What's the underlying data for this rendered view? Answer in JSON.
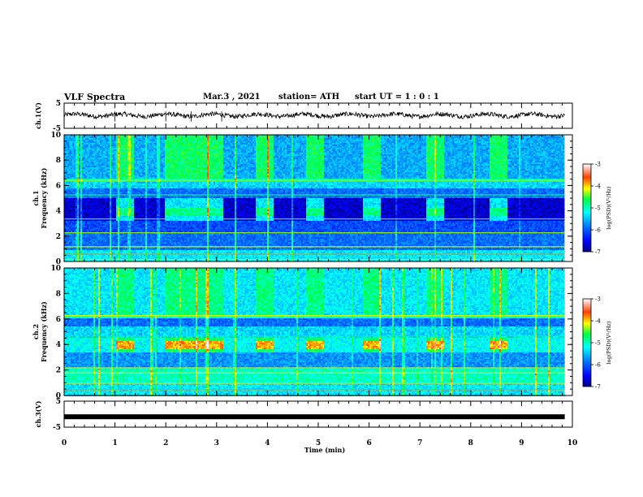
{
  "header": {
    "title": "VLF Spectra",
    "date": "Mar.3 , 2021",
    "station": "station= ATH",
    "start_ut": "start UT =  1 : 0 : 1"
  },
  "chart_data": [
    {
      "type": "line",
      "name": "ch1-waveform",
      "ylabel": "ch.1(V)",
      "ylim": [
        -5,
        5
      ],
      "yticks": [
        "5",
        "-5"
      ],
      "xlim": [
        0,
        10
      ],
      "description_values": {
        "level": 0.2
      }
    },
    {
      "type": "heatmap",
      "name": "ch1-spectrogram",
      "ylabel": "ch.1\nFrequency (kHz)",
      "ylabel_lines": [
        "ch.1",
        "Frequency (kHz)"
      ],
      "ylim": [
        0,
        10
      ],
      "yticks": [
        "0",
        "2",
        "4",
        "6",
        "8",
        "10"
      ],
      "xlim": [
        0,
        10
      ],
      "colorbar": {
        "label": "log(PSD)(V²/Hz)",
        "range": [
          -7,
          -3
        ],
        "ticks": [
          "-3",
          "-4",
          "-5",
          "-6",
          "-7"
        ]
      },
      "bursts_min": [
        [
          1.0,
          1.37
        ],
        [
          1.97,
          3.1
        ],
        [
          3.75,
          4.1
        ],
        [
          4.75,
          5.1
        ],
        [
          5.85,
          6.2
        ],
        [
          7.1,
          7.45
        ],
        [
          8.35,
          8.7
        ]
      ]
    },
    {
      "type": "heatmap",
      "name": "ch2-spectrogram",
      "ylabel": "ch.2\nFrequency (kHz)",
      "ylabel_lines": [
        "ch.2",
        "Frequency (kHz)"
      ],
      "ylim": [
        0,
        10
      ],
      "yticks": [
        "0",
        "2",
        "4",
        "6",
        "8",
        "10"
      ],
      "xlim": [
        0,
        10
      ],
      "colorbar": {
        "label": "log(PSD)(V²/Hz)",
        "range": [
          -7,
          -3
        ],
        "ticks": [
          "-3",
          "-4",
          "-5",
          "-6",
          "-7"
        ]
      },
      "bursts_min": [
        [
          1.0,
          1.37
        ],
        [
          1.97,
          3.1
        ],
        [
          3.75,
          4.1
        ],
        [
          4.75,
          5.1
        ],
        [
          5.85,
          6.2
        ],
        [
          7.1,
          7.45
        ],
        [
          8.35,
          8.7
        ]
      ]
    },
    {
      "type": "line",
      "name": "ch3-waveform",
      "ylabel": "ch.3(V)",
      "ylim": [
        -5,
        5
      ],
      "yticks": [
        "5",
        "-5"
      ],
      "xlim": [
        0,
        10
      ],
      "description_values": {
        "level": -1.0
      }
    }
  ],
  "xaxis": {
    "label": "Time (min)",
    "ticks": [
      "0",
      "1",
      "2",
      "3",
      "4",
      "5",
      "6",
      "7",
      "8",
      "9",
      "10"
    ]
  },
  "colors": {
    "low": "#00008b",
    "mid": "#00ffff",
    "high": "#ff0000"
  }
}
